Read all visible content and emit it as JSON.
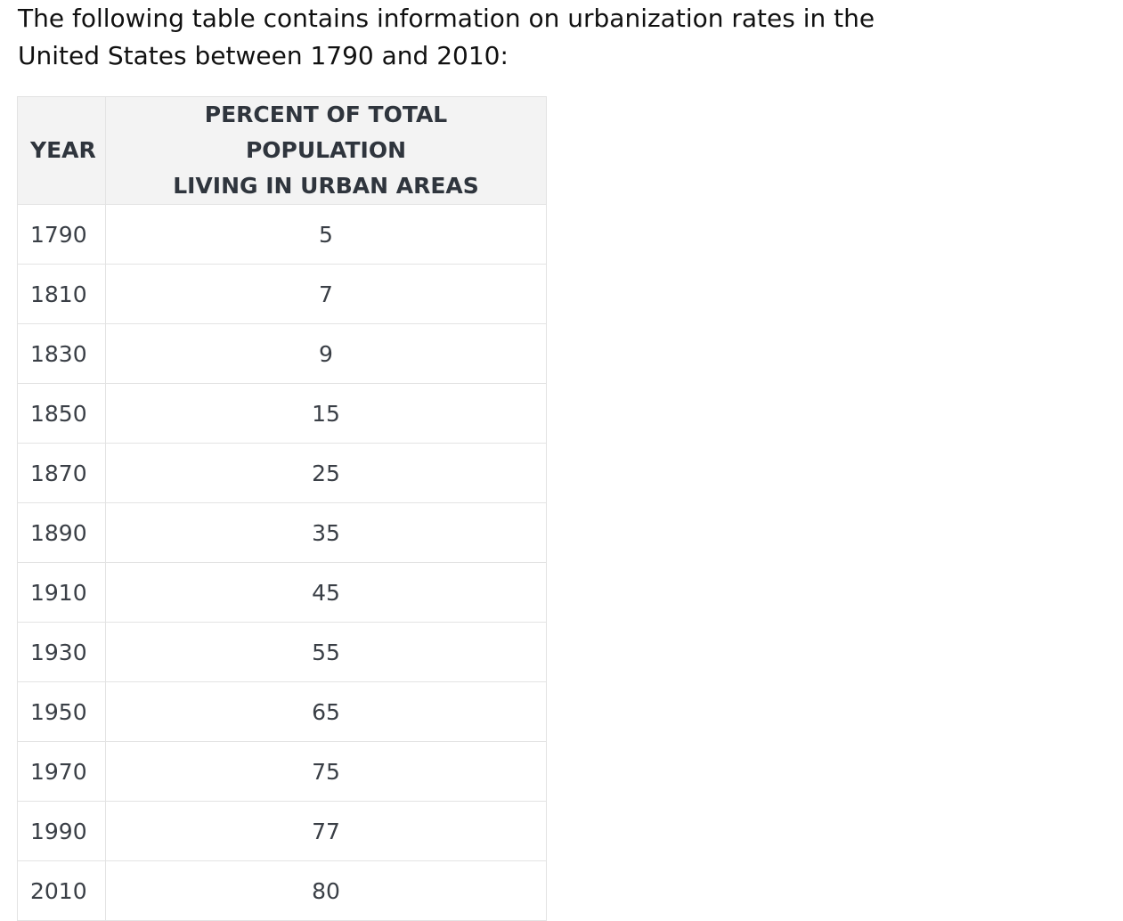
{
  "intro": {
    "line1": "The following table contains information on urbanization rates in the",
    "line2": "United States between 1790 and 2010:"
  },
  "table": {
    "headers": {
      "year": "YEAR",
      "percent_line1": "PERCENT OF TOTAL POPULATION",
      "percent_line2": "LIVING IN URBAN AREAS"
    },
    "rows": [
      {
        "year": "1790",
        "percent": "5"
      },
      {
        "year": "1810",
        "percent": "7"
      },
      {
        "year": "1830",
        "percent": "9"
      },
      {
        "year": "1850",
        "percent": "15"
      },
      {
        "year": "1870",
        "percent": "25"
      },
      {
        "year": "1890",
        "percent": "35"
      },
      {
        "year": "1910",
        "percent": "45"
      },
      {
        "year": "1930",
        "percent": "55"
      },
      {
        "year": "1950",
        "percent": "65"
      },
      {
        "year": "1970",
        "percent": "75"
      },
      {
        "year": "1990",
        "percent": "77"
      },
      {
        "year": "2010",
        "percent": "80"
      }
    ]
  },
  "colors": {
    "header_background": "#f3f3f3",
    "border": "#e3e3e3",
    "header_text": "#2f353d",
    "body_text": "#3a3f46",
    "intro_text": "#111111"
  }
}
